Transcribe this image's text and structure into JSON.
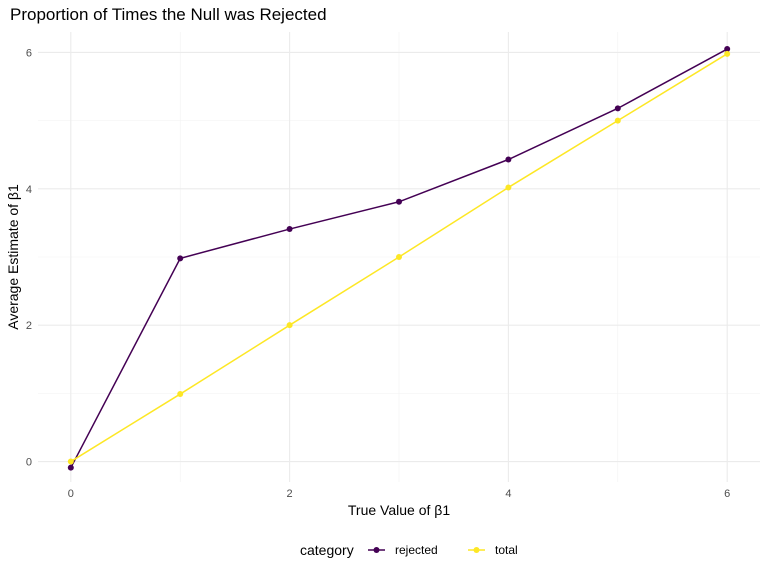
{
  "chart_data": {
    "type": "line",
    "title": "Proportion of Times the Null was Rejected",
    "xlabel": "True Value of β1",
    "ylabel": "Average Estimate of β1",
    "xlim": [
      -0.3,
      6.3
    ],
    "ylim": [
      -0.3,
      6.3
    ],
    "x_ticks": [
      0,
      2,
      4,
      6
    ],
    "y_ticks": [
      0,
      2,
      4,
      6
    ],
    "x_minor": [
      1,
      3,
      5
    ],
    "y_minor": [
      1,
      3,
      5
    ],
    "grid": true,
    "legend": {
      "title": "category",
      "position": "bottom"
    },
    "x": [
      0,
      1,
      2,
      3,
      4,
      5,
      6
    ],
    "series": [
      {
        "name": "rejected",
        "color": "#440154",
        "values": [
          -0.09,
          2.98,
          3.41,
          3.81,
          4.43,
          5.18,
          6.05
        ]
      },
      {
        "name": "total",
        "color": "#FDE725",
        "values": [
          0.0,
          0.99,
          2.0,
          3.0,
          4.02,
          5.0,
          5.98
        ]
      }
    ]
  }
}
